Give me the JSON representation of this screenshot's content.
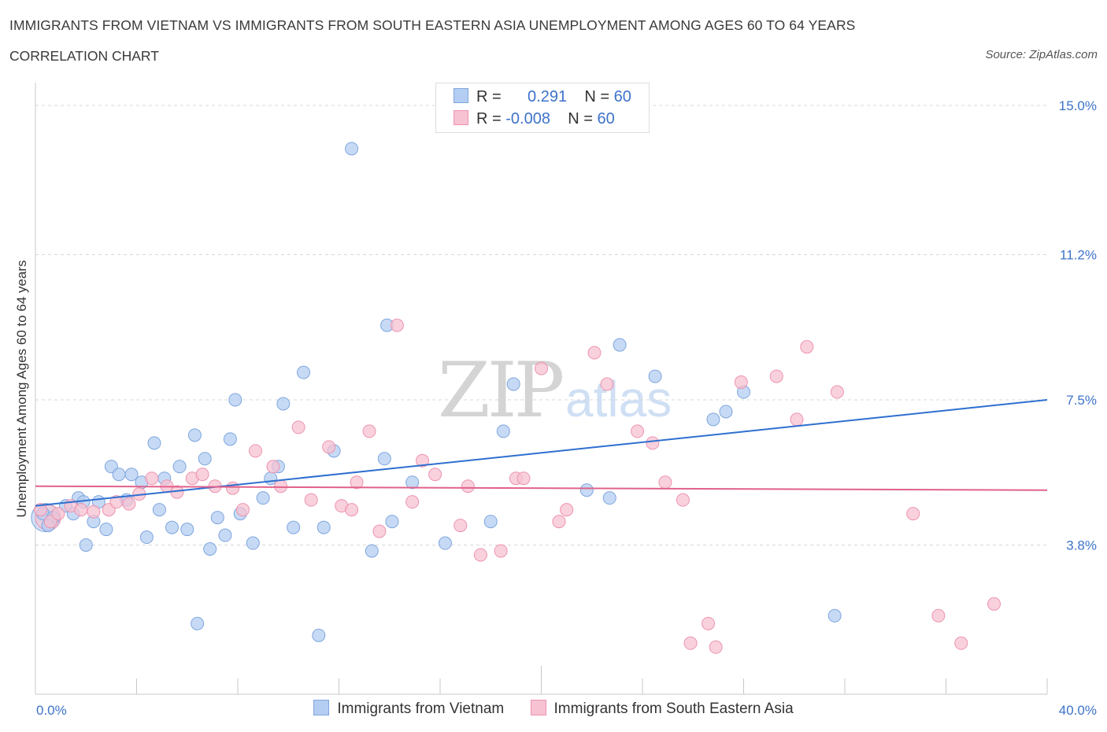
{
  "title": "IMMIGRANTS FROM VIETNAM VS IMMIGRANTS FROM SOUTH EASTERN ASIA UNEMPLOYMENT AMONG AGES 60 TO 64 YEARS",
  "subtitle": "CORRELATION CHART",
  "source": "Source: ZipAtlas.com",
  "watermark": {
    "zip": "ZIP",
    "atlas": "atlas"
  },
  "colors": {
    "blue_fill": "#b4cdf2",
    "blue_stroke": "#7ea6de",
    "blue_line": "#2e6fcf",
    "pink_fill": "#f7c2d2",
    "pink_stroke": "#ec94b0",
    "pink_line": "#e0628a",
    "grid": "#d8d8d8",
    "axis_label": "#3d73c9"
  },
  "stats": [
    {
      "r_label": "R =",
      "r_value": "0.291",
      "n_label": "N =",
      "n_value": "60"
    },
    {
      "r_label": "R =",
      "r_value": "-0.008",
      "n_label": "N =",
      "n_value": "60"
    }
  ],
  "legend": [
    "Immigrants from Vietnam",
    "Immigrants from South Eastern Asia"
  ],
  "chart_data": {
    "type": "scatter",
    "title": "IMMIGRANTS FROM VIETNAM VS IMMIGRANTS FROM SOUTH EASTERN ASIA UNEMPLOYMENT AMONG AGES 60 TO 64 YEARS",
    "xlabel": "",
    "ylabel": "Unemployment Among Ages 60 to 64 years",
    "xlim": [
      0,
      40
    ],
    "ylim": [
      0.0,
      15.3
    ],
    "x_tick_labels": [
      "0.0%",
      "40.0%"
    ],
    "y_ticks": [
      3.8,
      7.5,
      11.2,
      15.0
    ],
    "y_tick_labels": [
      "3.8%",
      "7.5%",
      "11.2%",
      "15.0%"
    ],
    "grid": true,
    "series": [
      {
        "name": "Immigrants from Vietnam",
        "trend": {
          "x": [
            0,
            40
          ],
          "y": [
            4.8,
            7.5
          ]
        },
        "points": [
          {
            "x": 0.3,
            "y": 4.6
          },
          {
            "x": 0.7,
            "y": 4.5
          },
          {
            "x": 1.2,
            "y": 4.8
          },
          {
            "x": 1.7,
            "y": 5.0
          },
          {
            "x": 2.0,
            "y": 3.8
          },
          {
            "x": 2.3,
            "y": 4.4
          },
          {
            "x": 2.5,
            "y": 4.9
          },
          {
            "x": 2.8,
            "y": 4.2
          },
          {
            "x": 3.0,
            "y": 5.8
          },
          {
            "x": 3.3,
            "y": 5.6
          },
          {
            "x": 3.6,
            "y": 4.95
          },
          {
            "x": 3.8,
            "y": 5.6
          },
          {
            "x": 4.2,
            "y": 5.4
          },
          {
            "x": 4.4,
            "y": 4.0
          },
          {
            "x": 4.7,
            "y": 6.4
          },
          {
            "x": 4.9,
            "y": 4.7
          },
          {
            "x": 5.1,
            "y": 5.5
          },
          {
            "x": 5.4,
            "y": 4.25
          },
          {
            "x": 5.7,
            "y": 5.8
          },
          {
            "x": 6.0,
            "y": 4.2
          },
          {
            "x": 6.3,
            "y": 6.6
          },
          {
            "x": 6.4,
            "y": 1.8
          },
          {
            "x": 6.7,
            "y": 6.0
          },
          {
            "x": 6.9,
            "y": 3.7
          },
          {
            "x": 7.2,
            "y": 4.5
          },
          {
            "x": 7.5,
            "y": 4.05
          },
          {
            "x": 7.7,
            "y": 6.5
          },
          {
            "x": 7.9,
            "y": 7.5
          },
          {
            "x": 8.1,
            "y": 4.6
          },
          {
            "x": 8.6,
            "y": 3.85
          },
          {
            "x": 9.0,
            "y": 5.0
          },
          {
            "x": 9.3,
            "y": 5.5
          },
          {
            "x": 9.6,
            "y": 5.8
          },
          {
            "x": 9.8,
            "y": 7.4
          },
          {
            "x": 10.2,
            "y": 4.25
          },
          {
            "x": 10.6,
            "y": 8.2
          },
          {
            "x": 11.2,
            "y": 1.5
          },
          {
            "x": 11.4,
            "y": 4.25
          },
          {
            "x": 11.8,
            "y": 6.2
          },
          {
            "x": 12.5,
            "y": 13.9
          },
          {
            "x": 13.3,
            "y": 3.65
          },
          {
            "x": 13.8,
            "y": 6.0
          },
          {
            "x": 14.1,
            "y": 4.4
          },
          {
            "x": 13.9,
            "y": 9.4
          },
          {
            "x": 14.9,
            "y": 5.4
          },
          {
            "x": 16.2,
            "y": 3.85
          },
          {
            "x": 18.0,
            "y": 4.4
          },
          {
            "x": 18.5,
            "y": 6.7
          },
          {
            "x": 18.9,
            "y": 7.9
          },
          {
            "x": 21.8,
            "y": 5.2
          },
          {
            "x": 22.7,
            "y": 5.0
          },
          {
            "x": 23.1,
            "y": 8.9
          },
          {
            "x": 24.5,
            "y": 8.1
          },
          {
            "x": 26.8,
            "y": 7.0
          },
          {
            "x": 27.3,
            "y": 7.2
          },
          {
            "x": 28.0,
            "y": 7.7
          },
          {
            "x": 31.6,
            "y": 2.0
          },
          {
            "x": 0.5,
            "y": 4.3
          },
          {
            "x": 1.5,
            "y": 4.6
          },
          {
            "x": 1.9,
            "y": 4.9
          }
        ]
      },
      {
        "name": "Immigrants from South Eastern Asia",
        "trend": {
          "x": [
            0,
            40
          ],
          "y": [
            5.3,
            5.2
          ]
        },
        "points": [
          {
            "x": 0.2,
            "y": 4.7
          },
          {
            "x": 0.6,
            "y": 4.4
          },
          {
            "x": 0.9,
            "y": 4.6
          },
          {
            "x": 1.4,
            "y": 4.8
          },
          {
            "x": 1.8,
            "y": 4.7
          },
          {
            "x": 2.3,
            "y": 4.65
          },
          {
            "x": 2.9,
            "y": 4.7
          },
          {
            "x": 3.2,
            "y": 4.9
          },
          {
            "x": 3.7,
            "y": 4.85
          },
          {
            "x": 4.1,
            "y": 5.1
          },
          {
            "x": 4.6,
            "y": 5.5
          },
          {
            "x": 5.2,
            "y": 5.3
          },
          {
            "x": 5.6,
            "y": 5.15
          },
          {
            "x": 6.2,
            "y": 5.5
          },
          {
            "x": 6.6,
            "y": 5.6
          },
          {
            "x": 7.1,
            "y": 5.3
          },
          {
            "x": 7.8,
            "y": 5.25
          },
          {
            "x": 8.2,
            "y": 4.7
          },
          {
            "x": 8.7,
            "y": 6.2
          },
          {
            "x": 9.4,
            "y": 5.8
          },
          {
            "x": 9.7,
            "y": 5.3
          },
          {
            "x": 10.4,
            "y": 6.8
          },
          {
            "x": 10.9,
            "y": 4.95
          },
          {
            "x": 11.6,
            "y": 6.3
          },
          {
            "x": 12.1,
            "y": 4.8
          },
          {
            "x": 12.5,
            "y": 4.7
          },
          {
            "x": 12.7,
            "y": 5.4
          },
          {
            "x": 13.2,
            "y": 6.7
          },
          {
            "x": 13.6,
            "y": 4.15
          },
          {
            "x": 14.3,
            "y": 9.4
          },
          {
            "x": 14.9,
            "y": 4.9
          },
          {
            "x": 15.3,
            "y": 5.95
          },
          {
            "x": 15.8,
            "y": 5.6
          },
          {
            "x": 16.8,
            "y": 4.3
          },
          {
            "x": 17.1,
            "y": 5.3
          },
          {
            "x": 17.6,
            "y": 3.55
          },
          {
            "x": 18.4,
            "y": 3.65
          },
          {
            "x": 19.0,
            "y": 5.5
          },
          {
            "x": 19.3,
            "y": 5.5
          },
          {
            "x": 20.0,
            "y": 8.3
          },
          {
            "x": 20.7,
            "y": 4.4
          },
          {
            "x": 21.0,
            "y": 4.7
          },
          {
            "x": 22.1,
            "y": 8.7
          },
          {
            "x": 22.6,
            "y": 7.9
          },
          {
            "x": 23.8,
            "y": 6.7
          },
          {
            "x": 24.4,
            "y": 6.4
          },
          {
            "x": 24.9,
            "y": 5.4
          },
          {
            "x": 25.6,
            "y": 4.95
          },
          {
            "x": 25.9,
            "y": 1.3
          },
          {
            "x": 26.6,
            "y": 1.8
          },
          {
            "x": 26.9,
            "y": 1.2
          },
          {
            "x": 27.9,
            "y": 7.95
          },
          {
            "x": 29.3,
            "y": 8.1
          },
          {
            "x": 30.1,
            "y": 7.0
          },
          {
            "x": 30.5,
            "y": 8.85
          },
          {
            "x": 31.7,
            "y": 7.7
          },
          {
            "x": 34.7,
            "y": 4.6
          },
          {
            "x": 35.7,
            "y": 2.0
          },
          {
            "x": 36.6,
            "y": 1.3
          },
          {
            "x": 37.9,
            "y": 2.3
          }
        ]
      }
    ]
  }
}
